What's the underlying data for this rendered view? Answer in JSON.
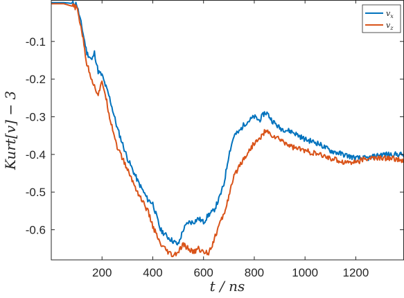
{
  "chart_data": {
    "type": "line",
    "title": "",
    "xlabel": "t / ns",
    "ylabel": "Kurt[v] − 3",
    "xlim": [
      0,
      1390
    ],
    "ylim": [
      -0.68,
      0.01
    ],
    "xticks": [
      200,
      400,
      600,
      800,
      1000,
      1200
    ],
    "yticks": [
      -0.1,
      -0.2,
      -0.3,
      -0.4,
      -0.5,
      -0.6
    ],
    "xtick_labels": [
      "200",
      "400",
      "600",
      "800",
      "1000",
      "1200"
    ],
    "ytick_labels": [
      "-0.1",
      "-0.2",
      "-0.3",
      "-0.4",
      "-0.5",
      "-0.6"
    ],
    "grid": false,
    "legend": "top-right",
    "series": [
      {
        "name": "v_x",
        "label_main": "v",
        "label_sub": "x",
        "color": "#0072BD",
        "x": [
          0,
          50,
          100,
          120,
          140,
          160,
          170,
          185,
          200,
          210,
          230,
          260,
          300,
          340,
          380,
          400,
          430,
          460,
          480,
          500,
          520,
          540,
          560,
          580,
          600,
          620,
          640,
          660,
          680,
          700,
          720,
          740,
          760,
          780,
          800,
          820,
          840,
          850,
          870,
          900,
          950,
          1000,
          1050,
          1100,
          1150,
          1200,
          1250,
          1300,
          1350,
          1390
        ],
        "y": [
          0.003,
          0.003,
          0.0,
          -0.06,
          -0.13,
          -0.15,
          -0.13,
          -0.18,
          -0.19,
          -0.21,
          -0.25,
          -0.33,
          -0.41,
          -0.47,
          -0.52,
          -0.53,
          -0.6,
          -0.62,
          -0.63,
          -0.64,
          -0.6,
          -0.58,
          -0.58,
          -0.57,
          -0.58,
          -0.56,
          -0.55,
          -0.52,
          -0.48,
          -0.4,
          -0.35,
          -0.34,
          -0.32,
          -0.31,
          -0.3,
          -0.31,
          -0.29,
          -0.29,
          -0.31,
          -0.33,
          -0.34,
          -0.36,
          -0.37,
          -0.39,
          -0.4,
          -0.41,
          -0.41,
          -0.4,
          -0.4,
          -0.4
        ]
      },
      {
        "name": "v_z",
        "label_main": "v",
        "label_sub": "z",
        "color": "#D95319",
        "x": [
          0,
          50,
          100,
          120,
          140,
          160,
          170,
          185,
          200,
          210,
          230,
          260,
          300,
          340,
          380,
          400,
          430,
          460,
          480,
          500,
          520,
          540,
          560,
          580,
          600,
          620,
          640,
          660,
          680,
          700,
          720,
          740,
          760,
          780,
          800,
          820,
          840,
          850,
          870,
          900,
          950,
          1000,
          1050,
          1100,
          1150,
          1200,
          1250,
          1300,
          1350,
          1390
        ],
        "y": [
          0.0,
          0.0,
          -0.01,
          -0.07,
          -0.16,
          -0.2,
          -0.22,
          -0.24,
          -0.21,
          -0.23,
          -0.3,
          -0.38,
          -0.44,
          -0.5,
          -0.55,
          -0.59,
          -0.64,
          -0.66,
          -0.67,
          -0.66,
          -0.64,
          -0.65,
          -0.66,
          -0.65,
          -0.66,
          -0.66,
          -0.63,
          -0.59,
          -0.56,
          -0.51,
          -0.46,
          -0.43,
          -0.41,
          -0.39,
          -0.37,
          -0.36,
          -0.34,
          -0.34,
          -0.35,
          -0.36,
          -0.38,
          -0.39,
          -0.4,
          -0.41,
          -0.42,
          -0.42,
          -0.41,
          -0.41,
          -0.41,
          -0.42
        ]
      }
    ]
  }
}
